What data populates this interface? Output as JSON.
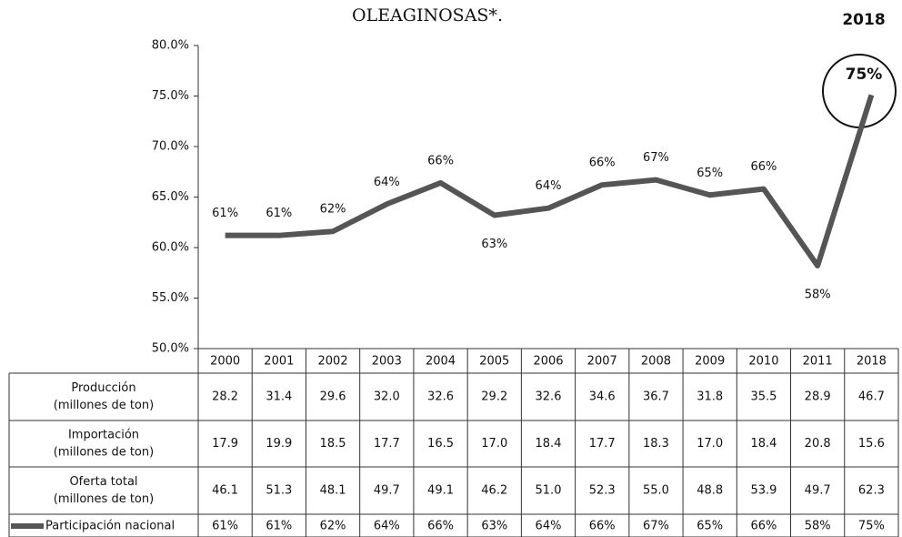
{
  "chart_data": {
    "type": "line",
    "title": "OLEAGINOSAS*.",
    "highlight": "2018",
    "categories": [
      "2000",
      "2001",
      "2002",
      "2003",
      "2004",
      "2005",
      "2006",
      "2007",
      "2008",
      "2009",
      "2010",
      "2011",
      "2018"
    ],
    "series": [
      {
        "name": "Participación nacional",
        "color": "#555555",
        "values": [
          61.2,
          61.2,
          61.6,
          64.3,
          66.4,
          63.2,
          63.9,
          66.2,
          66.7,
          65.2,
          65.8,
          58.2,
          75.1
        ],
        "value_labels": [
          "61%",
          "61%",
          "62%",
          "64%",
          "66%",
          "63%",
          "64%",
          "66%",
          "67%",
          "65%",
          "66%",
          "58%",
          "75%"
        ]
      }
    ],
    "ylim": [
      50,
      80
    ],
    "yticks": [
      {
        "value": 50,
        "label": "50.0%"
      },
      {
        "value": 55,
        "label": "55.0%"
      },
      {
        "value": 60,
        "label": "60.0%"
      },
      {
        "value": 65,
        "label": "65.0%"
      },
      {
        "value": 70,
        "label": "70.0%"
      },
      {
        "value": 75,
        "label": "75.0%"
      },
      {
        "value": 80,
        "label": "80.0%"
      }
    ],
    "table": [
      {
        "label": [
          "Producción",
          "(millones de ton)"
        ],
        "cells": [
          "28.2",
          "31.4",
          "29.6",
          "32.0",
          "32.6",
          "29.2",
          "32.6",
          "34.6",
          "36.7",
          "31.8",
          "35.5",
          "28.9",
          "46.7"
        ]
      },
      {
        "label": [
          "Importación",
          "(millones de ton)"
        ],
        "cells": [
          "17.9",
          "19.9",
          "18.5",
          "17.7",
          "16.5",
          "17.0",
          "18.4",
          "17.7",
          "18.3",
          "17.0",
          "18.4",
          "20.8",
          "15.6"
        ]
      },
      {
        "label": [
          "Oferta total",
          "(millones de ton)"
        ],
        "cells": [
          "46.1",
          "51.3",
          "48.1",
          "49.7",
          "49.1",
          "46.2",
          "51.0",
          "52.3",
          "55.0",
          "48.8",
          "53.9",
          "49.7",
          "62.3"
        ]
      }
    ]
  }
}
